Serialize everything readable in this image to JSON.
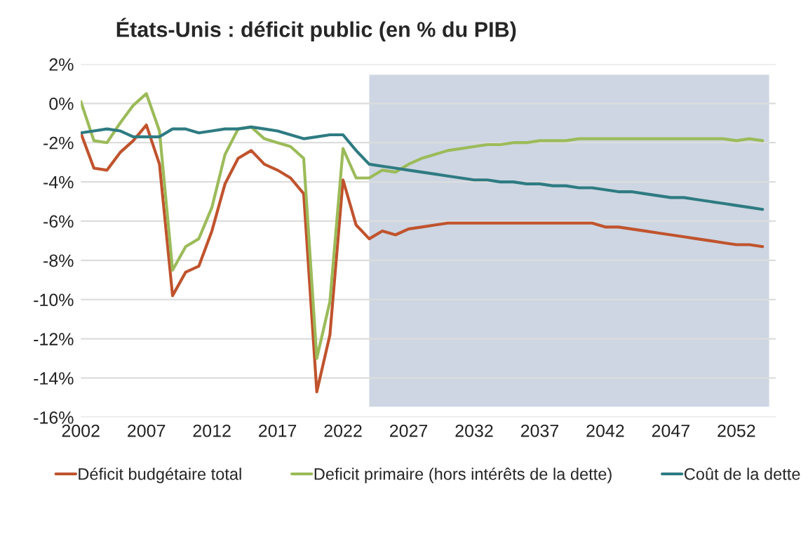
{
  "chart_data": {
    "type": "line",
    "title": "États-Unis : déficit public (en % du PIB)",
    "x": [
      2002,
      2003,
      2004,
      2005,
      2006,
      2007,
      2008,
      2009,
      2010,
      2011,
      2012,
      2013,
      2014,
      2015,
      2016,
      2017,
      2018,
      2019,
      2020,
      2021,
      2022,
      2023,
      2024,
      2025,
      2026,
      2027,
      2028,
      2029,
      2030,
      2031,
      2032,
      2033,
      2034,
      2035,
      2036,
      2037,
      2038,
      2039,
      2040,
      2041,
      2042,
      2043,
      2044,
      2045,
      2046,
      2047,
      2048,
      2049,
      2050,
      2051,
      2052,
      2053,
      2054
    ],
    "series": [
      {
        "name": "Déficit budgétaire total",
        "color": "#c0532d",
        "values": [
          -1.5,
          -3.3,
          -3.4,
          -2.5,
          -1.9,
          -1.1,
          -3.1,
          -9.8,
          -8.6,
          -8.3,
          -6.5,
          -4.1,
          -2.8,
          -2.4,
          -3.1,
          -3.4,
          -3.8,
          -4.6,
          -14.7,
          -11.8,
          -3.9,
          -6.2,
          -6.9,
          -6.5,
          -6.7,
          -6.4,
          -6.3,
          -6.2,
          -6.1,
          -6.1,
          -6.1,
          -6.1,
          -6.1,
          -6.1,
          -6.1,
          -6.1,
          -6.1,
          -6.1,
          -6.1,
          -6.1,
          -6.3,
          -6.3,
          -6.4,
          -6.5,
          -6.6,
          -6.7,
          -6.8,
          -6.9,
          -7.0,
          -7.1,
          -7.2,
          -7.2,
          -7.3
        ]
      },
      {
        "name": "Deficit primaire (hors intérêts de la dette)",
        "color": "#9bbb59",
        "values": [
          0.1,
          -1.9,
          -2.0,
          -1.0,
          -0.1,
          0.5,
          -1.4,
          -8.5,
          -7.3,
          -6.9,
          -5.3,
          -2.6,
          -1.3,
          -1.2,
          -1.8,
          -2.0,
          -2.2,
          -2.8,
          -13.0,
          -10.1,
          -2.3,
          -3.8,
          -3.8,
          -3.4,
          -3.5,
          -3.1,
          -2.8,
          -2.6,
          -2.4,
          -2.3,
          -2.2,
          -2.1,
          -2.1,
          -2.0,
          -2.0,
          -1.9,
          -1.9,
          -1.9,
          -1.8,
          -1.8,
          -1.8,
          -1.8,
          -1.8,
          -1.8,
          -1.8,
          -1.8,
          -1.8,
          -1.8,
          -1.8,
          -1.8,
          -1.9,
          -1.8,
          -1.9
        ]
      },
      {
        "name": "Coût de la dette",
        "color": "#2e7b82",
        "values": [
          -1.5,
          -1.4,
          -1.3,
          -1.4,
          -1.7,
          -1.7,
          -1.7,
          -1.3,
          -1.3,
          -1.5,
          -1.4,
          -1.3,
          -1.3,
          -1.2,
          -1.3,
          -1.4,
          -1.6,
          -1.8,
          -1.7,
          -1.6,
          -1.6,
          -2.4,
          -3.1,
          -3.2,
          -3.3,
          -3.4,
          -3.5,
          -3.6,
          -3.7,
          -3.8,
          -3.9,
          -3.9,
          -4.0,
          -4.0,
          -4.1,
          -4.1,
          -4.2,
          -4.2,
          -4.3,
          -4.3,
          -4.4,
          -4.5,
          -4.5,
          -4.6,
          -4.7,
          -4.8,
          -4.8,
          -4.9,
          -5.0,
          -5.1,
          -5.2,
          -5.3,
          -5.4
        ]
      }
    ],
    "xlim": [
      2002,
      2055
    ],
    "xticks": [
      2002,
      2007,
      2012,
      2017,
      2022,
      2027,
      2032,
      2037,
      2042,
      2047,
      2052
    ],
    "ylim": [
      -16,
      2
    ],
    "yticks": [
      {
        "value": 2,
        "label": "2%"
      },
      {
        "value": 0,
        "label": "0%"
      },
      {
        "value": -2,
        "label": "-2%"
      },
      {
        "value": -4,
        "label": "-4%"
      },
      {
        "value": -6,
        "label": "-6%"
      },
      {
        "value": -8,
        "label": "-8%"
      },
      {
        "value": -10,
        "label": "-10%"
      },
      {
        "value": -12,
        "label": "-12%"
      },
      {
        "value": -14,
        "label": "-14%"
      },
      {
        "value": -16,
        "label": "-16%"
      }
    ],
    "bands": [
      {
        "axis": "x",
        "from": 2024,
        "to": 2054.5,
        "color": "#cdd6e2"
      }
    ],
    "grid": "y",
    "legend": "bottom",
    "marker": "none",
    "line_style": "solid"
  }
}
